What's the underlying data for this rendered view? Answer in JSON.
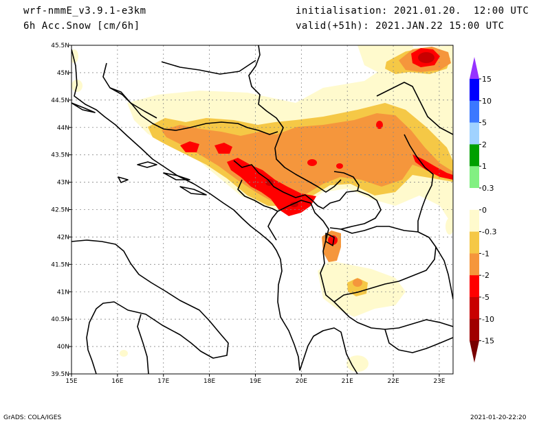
{
  "header": {
    "model": "wrf-nmmE_v3.9.1-e3km",
    "field": "6h Acc.Snow [cm/6h]",
    "init": "initialisation: 2021.01.20.  12:00 UTC",
    "valid": "valid(+51h): 2021.JAN.22 15:00 UTC"
  },
  "footer": {
    "left": "GrADS: COLA/IGES",
    "right": "2021-01-20-22:20"
  },
  "map": {
    "lon_labels": [
      "15E",
      "16E",
      "17E",
      "18E",
      "19E",
      "20E",
      "21E",
      "22E",
      "23E"
    ],
    "lat_labels": [
      "39.5N",
      "40N",
      "40.5N",
      "41N",
      "41.5N",
      "42N",
      "42.5N",
      "43N",
      "43.5N",
      "44N",
      "44.5N",
      "45N",
      "45.5N"
    ],
    "lon_range": [
      15,
      23.3
    ],
    "lat_range": [
      39.5,
      45.5
    ]
  },
  "colorbar": {
    "labels": [
      "15",
      "10",
      "5",
      "2",
      "1",
      "0.3",
      "0",
      "-0.3",
      "-1",
      "-2",
      "-5",
      "-10",
      "-15"
    ],
    "colors": [
      "#0000ff",
      "#3c78ff",
      "#a0d2ff",
      "#00a000",
      "#82f082",
      "#ffffff",
      "#fffacd",
      "#f5c846",
      "#f5963c",
      "#ff0000",
      "#c80000",
      "#a00000"
    ],
    "top_arrow_color": "#9632ff",
    "bottom_arrow_color": "#780000"
  },
  "colors": {
    "light_yellow": "#fffacd",
    "yellow": "#f5c846",
    "orange": "#f5963c",
    "red": "#ff0000",
    "dark_red": "#c80000"
  }
}
